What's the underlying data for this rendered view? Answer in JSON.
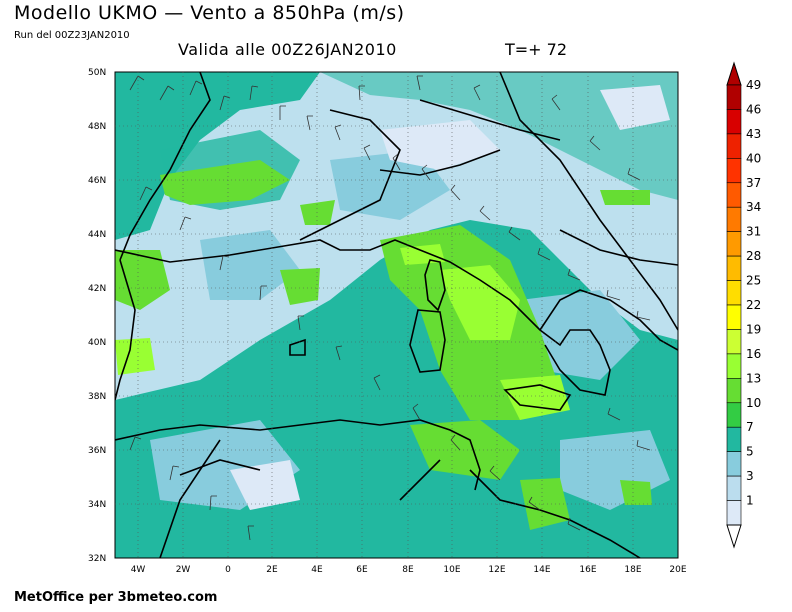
{
  "header": {
    "title": "Modello UKMO — Vento a 850hPa (m/s)",
    "run": "Run del 00Z23JAN2010",
    "valid": "Valida alle 00Z26JAN2010",
    "tstep": "T=+ 72"
  },
  "footer": {
    "credit": "MetOffice per 3bmeteo.com"
  },
  "map": {
    "lat_labels": [
      "50N",
      "48N",
      "46N",
      "44N",
      "42N",
      "40N",
      "38N",
      "36N",
      "34N",
      "32N"
    ],
    "lon_labels": [
      "4W",
      "2W",
      "0",
      "2E",
      "4E",
      "6E",
      "8E",
      "10E",
      "12E",
      "14E",
      "16E",
      "18E",
      "20E"
    ]
  },
  "colorbar": {
    "labels": [
      "49",
      "46",
      "43",
      "40",
      "37",
      "34",
      "31",
      "28",
      "25",
      "22",
      "19",
      "16",
      "13",
      "10",
      "7",
      "5",
      "3",
      "1"
    ],
    "colors": [
      "#b00000",
      "#d80000",
      "#ee2200",
      "#ff3300",
      "#ff5a00",
      "#ff7a00",
      "#ff9a00",
      "#ffbb00",
      "#ffdd00",
      "#ffff00",
      "#ccff33",
      "#99ff33",
      "#66dd33",
      "#33cc44",
      "#22b8a0",
      "#88ccdd",
      "#bbddee",
      "#dde9f7"
    ]
  }
}
